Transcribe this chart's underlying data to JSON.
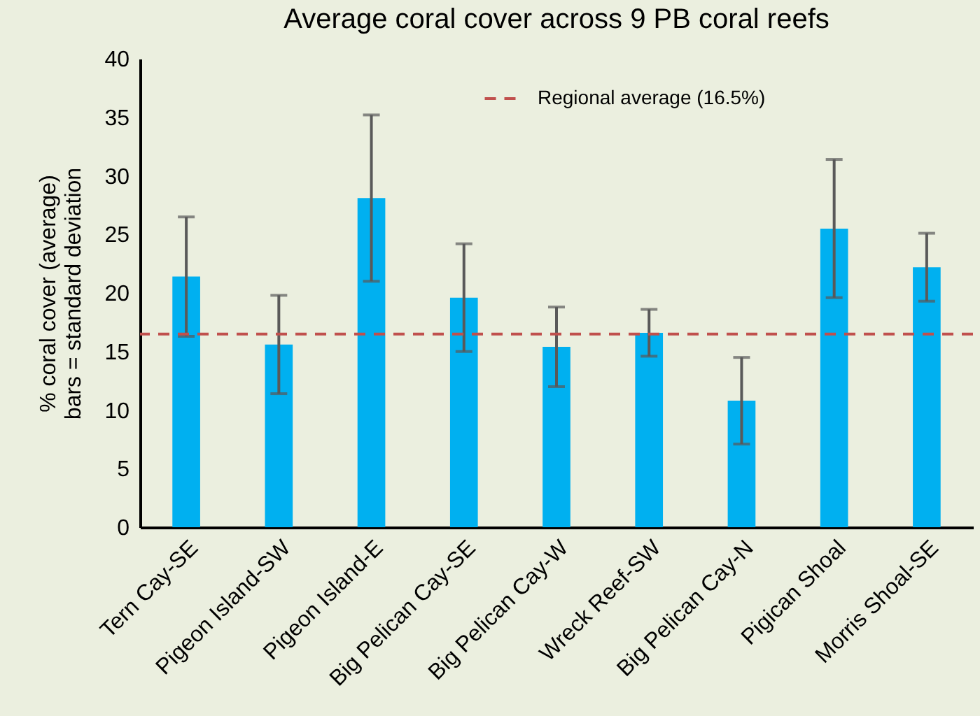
{
  "chart_data": {
    "type": "bar",
    "title": "Average coral cover across 9 PB coral reefs",
    "ylabel": "% coral cover (average)\nbars = standard deviation",
    "categories": [
      "Tern Cay-SE",
      "Pigeon Island-SW",
      "Pigeon Island-E",
      "Big Pelican Cay-SE",
      "Big Pelican Cay-W",
      "Wreck Reef-SW",
      "Big Pelican Cay-N",
      "Pigican Shoal",
      "Morris Shoal-SE"
    ],
    "values": [
      21.4,
      15.6,
      28.1,
      19.6,
      15.4,
      16.6,
      10.8,
      25.5,
      22.2
    ],
    "errors": [
      5.1,
      4.2,
      7.1,
      4.6,
      3.4,
      2.0,
      3.7,
      5.9,
      2.9
    ],
    "color": "#00b0f0",
    "ylim": [
      0,
      40
    ],
    "yticks": [
      0,
      5,
      10,
      15,
      20,
      25,
      30,
      35,
      40
    ],
    "grid": false,
    "ref_lines": [
      {
        "axis": "y",
        "value": 16.5,
        "label": "Regional average (16.5%)",
        "color": "#c0504d",
        "line_style": "dashed"
      }
    ],
    "legend": "top right"
  }
}
